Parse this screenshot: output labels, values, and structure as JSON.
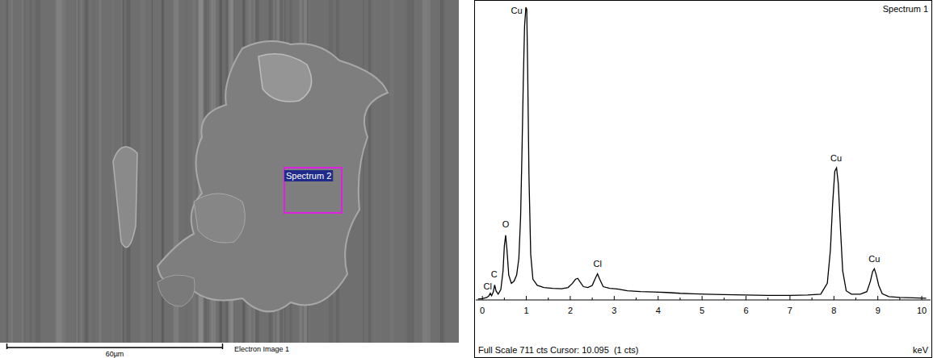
{
  "chart_data": {
    "type": "line",
    "title": "Spectrum 1",
    "x_label": "keV",
    "footer": "Full Scale 711 cts Cursor: 10.095  (1 cts)",
    "x": [
      -0.1,
      0,
      0.1,
      0.15,
      0.18,
      0.21,
      0.25,
      0.28,
      0.31,
      0.36,
      0.42,
      0.47,
      0.5,
      0.53,
      0.56,
      0.6,
      0.66,
      0.72,
      0.78,
      0.83,
      0.87,
      0.9,
      0.93,
      0.96,
      0.99,
      1.01,
      1.03,
      1.06,
      1.1,
      1.15,
      1.25,
      1.4,
      1.6,
      1.8,
      1.95,
      2.05,
      2.12,
      2.17,
      2.22,
      2.3,
      2.4,
      2.5,
      2.57,
      2.62,
      2.67,
      2.75,
      2.9,
      3.1,
      3.3,
      3.6,
      3.9,
      4.2,
      4.5,
      4.8,
      5.1,
      5.5,
      6.0,
      6.5,
      7.0,
      7.4,
      7.7,
      7.85,
      7.92,
      7.97,
      8.02,
      8.06,
      8.1,
      8.15,
      8.2,
      8.28,
      8.4,
      8.6,
      8.75,
      8.83,
      8.88,
      8.92,
      8.96,
      9.02,
      9.1,
      9.25,
      9.5,
      9.8,
      10.1
    ],
    "values": [
      2,
      3,
      6,
      10,
      16,
      10,
      20,
      36,
      22,
      14,
      25,
      70,
      130,
      156,
      120,
      60,
      40,
      45,
      60,
      100,
      200,
      350,
      520,
      660,
      705,
      700,
      560,
      300,
      110,
      50,
      35,
      30,
      28,
      27,
      30,
      40,
      50,
      52,
      44,
      32,
      30,
      35,
      52,
      63,
      50,
      32,
      28,
      26,
      22,
      20,
      19,
      18,
      16,
      15,
      14,
      13,
      12,
      11,
      11,
      12,
      14,
      40,
      120,
      230,
      310,
      318,
      280,
      170,
      70,
      22,
      14,
      14,
      20,
      45,
      68,
      75,
      62,
      35,
      15,
      8,
      6,
      5,
      4
    ],
    "color": "#000000",
    "xlim": [
      -0.15,
      10.2
    ],
    "xticks": [
      0,
      1,
      2,
      3,
      4,
      5,
      6,
      7,
      8,
      9,
      10
    ],
    "ylim": [
      0,
      711
    ],
    "tick_labels": "x",
    "grid": false,
    "annotations": [
      {
        "text": "Cu",
        "x": 0.78,
        "y": 690
      },
      {
        "text": "O",
        "x": 0.53,
        "y": 175
      },
      {
        "text": "C",
        "x": 0.27,
        "y": 55
      },
      {
        "text": "Cl",
        "x": 0.12,
        "y": 25
      },
      {
        "text": "Cl",
        "x": 2.62,
        "y": 80
      },
      {
        "text": "Cu",
        "x": 8.05,
        "y": 335
      },
      {
        "text": "Cu",
        "x": 8.92,
        "y": 92
      }
    ]
  },
  "image": {
    "region_label": "Spectrum 2",
    "scale_bar_label": "60µm",
    "caption": "Electron Image 1"
  }
}
